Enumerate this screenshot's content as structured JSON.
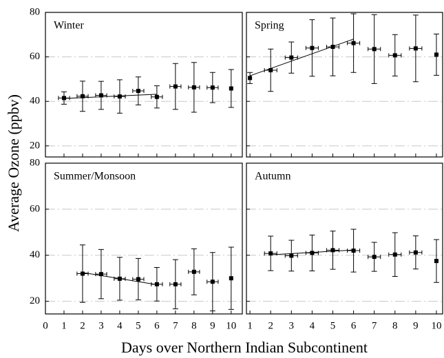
{
  "ylabel": "Average Ozone (ppbv)",
  "xlabel": "Days over Northern Indian Subcontinent",
  "chart_data": [
    {
      "type": "errorbar",
      "title": "Winter",
      "color": "#000000",
      "grid": true,
      "x": [
        1,
        2,
        3,
        4,
        5,
        6,
        7,
        8,
        9,
        10
      ],
      "values": [
        41.5,
        42.3,
        42.7,
        42.2,
        44.7,
        42,
        46.7,
        46.3,
        46.2,
        45.8
      ],
      "yerr": [
        2.8,
        6.8,
        6.3,
        7.5,
        6.3,
        5,
        10.3,
        11.2,
        6.8,
        8.5
      ],
      "xerr": [
        0.3,
        0.3,
        0.3,
        0.3,
        0.3,
        0.3,
        0.3,
        0.3,
        0.3,
        0
      ],
      "fit": {
        "x": [
          1,
          6
        ],
        "y": [
          41.3,
          43.2
        ]
      },
      "xlim": [
        0,
        10.6
      ],
      "xticks": [
        0,
        1,
        2,
        3,
        4,
        5,
        6,
        7,
        8,
        9,
        10
      ],
      "ylim": [
        15,
        80
      ],
      "yticks": [
        20,
        40,
        60,
        80
      ]
    },
    {
      "type": "errorbar",
      "title": "Spring",
      "color": "#000000",
      "grid": true,
      "x": [
        1,
        2,
        3,
        4,
        5,
        6,
        7,
        8,
        9,
        10
      ],
      "values": [
        50.5,
        54,
        59.7,
        64,
        64.5,
        66.2,
        63.5,
        60.7,
        63.8,
        61
      ],
      "yerr": [
        2.5,
        9.5,
        7,
        12.7,
        13,
        13.2,
        15.5,
        9.3,
        15,
        9.3
      ],
      "xerr": [
        0,
        0.3,
        0.3,
        0.3,
        0.3,
        0.3,
        0.3,
        0.3,
        0.3,
        0
      ],
      "fit": {
        "x": [
          1,
          6
        ],
        "y": [
          51.5,
          68
        ]
      },
      "xlim": [
        0.83,
        10.3
      ],
      "xticks": [
        1,
        2,
        3,
        4,
        5,
        6,
        7,
        8,
        9,
        10
      ],
      "ylim": [
        15,
        80
      ],
      "yticks": [
        20,
        40,
        60,
        80
      ]
    },
    {
      "type": "errorbar",
      "title": "Summer/Monsoon",
      "color": "#000000",
      "grid": true,
      "x": [
        2,
        3,
        4,
        5,
        6,
        7,
        8,
        9,
        10
      ],
      "values": [
        32,
        31.8,
        29.8,
        29.6,
        27.4,
        27.4,
        32.8,
        28.5,
        30
      ],
      "yerr": [
        12.5,
        10.7,
        9.3,
        9,
        7.3,
        10.7,
        10,
        12.7,
        13.5
      ],
      "xerr": [
        0.3,
        0.3,
        0.3,
        0.3,
        0.3,
        0.3,
        0.3,
        0.3,
        0
      ],
      "fit": {
        "x": [
          2,
          6
        ],
        "y": [
          32.5,
          27.2
        ]
      },
      "xlim": [
        0,
        10.6
      ],
      "xticks": [
        0,
        1,
        2,
        3,
        4,
        5,
        6,
        7,
        8,
        9,
        10
      ],
      "ylim": [
        14.5,
        80
      ],
      "yticks": [
        20,
        40,
        60,
        80
      ]
    },
    {
      "type": "errorbar",
      "title": "Autumn",
      "color": "#000000",
      "grid": true,
      "x": [
        2,
        3,
        4,
        5,
        6,
        7,
        8,
        9,
        10
      ],
      "values": [
        40.8,
        39.8,
        41,
        42.2,
        42,
        39.3,
        40.3,
        41.2,
        37.5
      ],
      "yerr": [
        7.5,
        6.7,
        7.8,
        8.3,
        9.3,
        6.3,
        9.5,
        7.2,
        9.3
      ],
      "xerr": [
        0.3,
        0.3,
        0.3,
        0.3,
        0.3,
        0.3,
        0.3,
        0.3,
        0
      ],
      "fit": {
        "x": [
          2,
          6
        ],
        "y": [
          40.2,
          42.3
        ]
      },
      "xlim": [
        0.83,
        10.3
      ],
      "xticks": [
        1,
        2,
        3,
        4,
        5,
        6,
        7,
        8,
        9,
        10
      ],
      "ylim": [
        14.5,
        80
      ],
      "yticks": [
        20,
        40,
        60,
        80
      ]
    }
  ]
}
